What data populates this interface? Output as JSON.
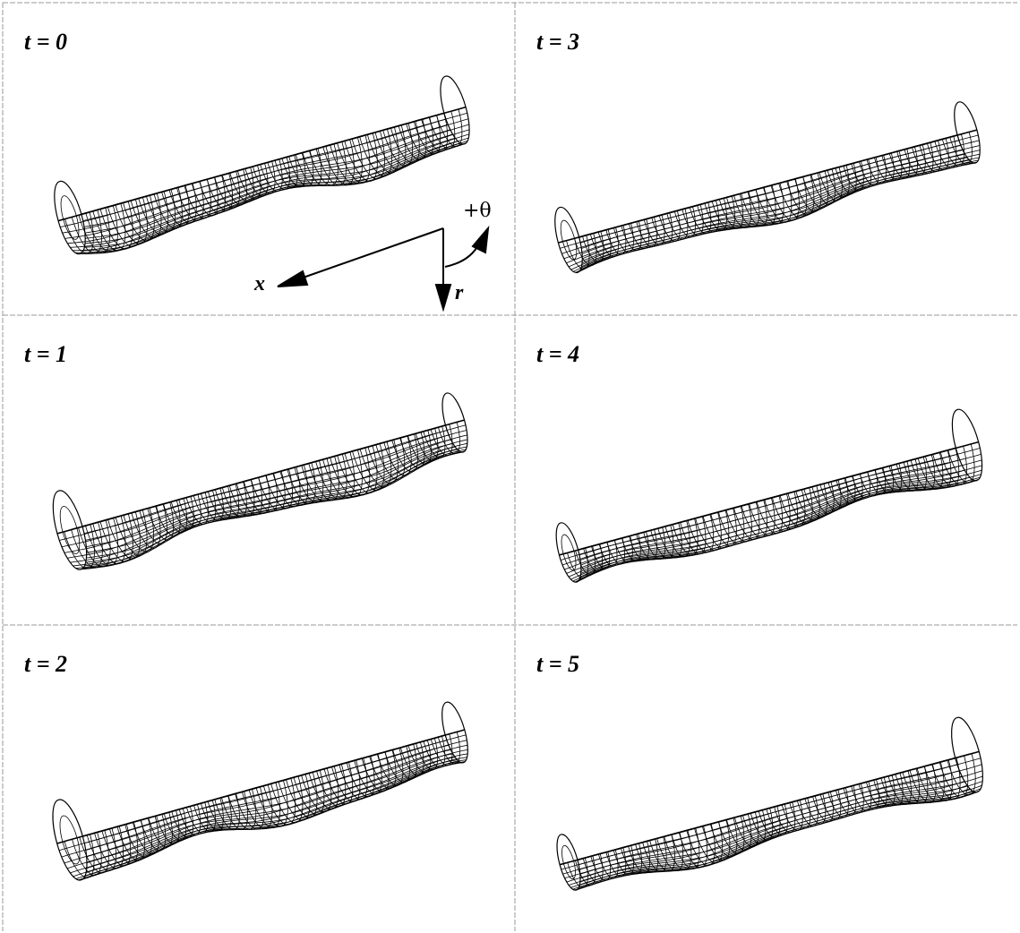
{
  "panels": [
    {
      "label": "t = 0"
    },
    {
      "label": "t = 1"
    },
    {
      "label": "t = 2"
    },
    {
      "label": "t = 3"
    },
    {
      "label": "t = 4"
    },
    {
      "label": "t = 5"
    }
  ],
  "axes": {
    "x": "x",
    "r": "r",
    "theta": "+θ"
  }
}
